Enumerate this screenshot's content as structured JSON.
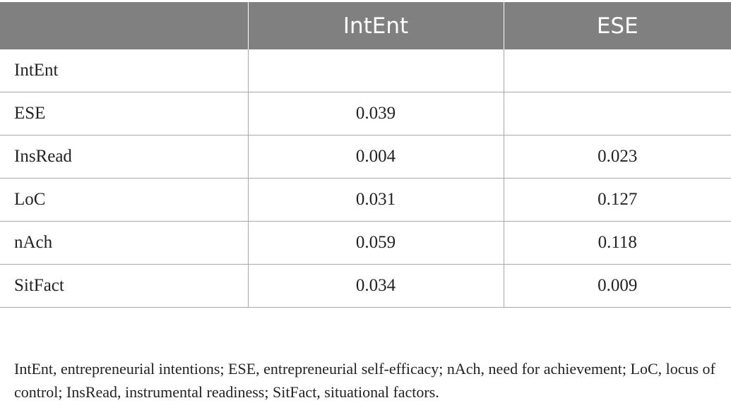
{
  "table": {
    "header": [
      "",
      "IntEnt",
      "ESE"
    ],
    "rows": [
      {
        "label": "IntEnt",
        "intent": "",
        "ese": ""
      },
      {
        "label": "ESE",
        "intent": "0.039",
        "ese": ""
      },
      {
        "label": "InsRead",
        "intent": "0.004",
        "ese": "0.023"
      },
      {
        "label": "LoC",
        "intent": "0.031",
        "ese": "0.127"
      },
      {
        "label": "nAch",
        "intent": "0.059",
        "ese": "0.118"
      },
      {
        "label": "SitFact",
        "intent": "0.034",
        "ese": "0.009"
      }
    ]
  },
  "footnote": "IntEnt, entrepreneurial intentions; ESE, entrepreneurial self-efficacy; nAch, need for achievement; LoC, locus of control; InsRead, instrumental readiness; SitFact, situational factors.",
  "colors": {
    "header_bg": "#808080",
    "header_text": "#ffffff",
    "grid": "#a8a8a8",
    "body_text": "#222222"
  }
}
